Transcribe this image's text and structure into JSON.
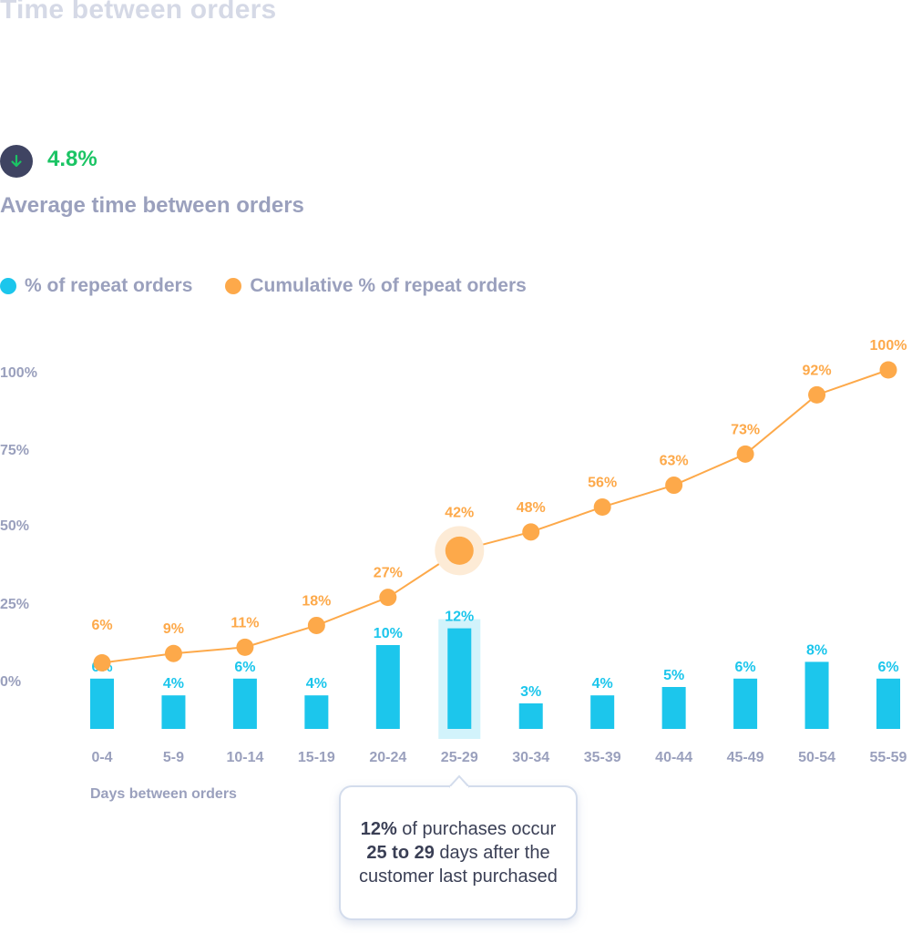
{
  "header": {
    "title": "Time between orders"
  },
  "kpi": {
    "icon": "arrow-down-icon",
    "value": "4.8%",
    "label": "Average time between orders",
    "value_color": "#1bc464",
    "icon_bg": "#3f4462"
  },
  "legend": {
    "items": [
      {
        "label": "% of repeat orders",
        "color": "#1cc6ec"
      },
      {
        "label": "Cumulative % of repeat orders",
        "color": "#fda94a"
      }
    ]
  },
  "axis": {
    "y_ticks": [
      "100%",
      "75%",
      "50%",
      "25%",
      "0%"
    ],
    "x_label": "Days between orders"
  },
  "tooltip": {
    "p1_bold": "12%",
    "p1_text": " of purchases occur ",
    "p2_bold": "25 to 29",
    "p2_text": " days after the customer last purchased"
  },
  "chart_data": {
    "type": "bar+line",
    "title": "Time between orders",
    "xlabel": "Days between orders",
    "ylabel": "",
    "ylim": [
      0,
      100
    ],
    "y_ticks": [
      0,
      25,
      50,
      75,
      100
    ],
    "grid": false,
    "legend_position": "top-left",
    "categories": [
      "0-4",
      "5-9",
      "10-14",
      "15-19",
      "20-24",
      "25-29",
      "30-34",
      "35-39",
      "40-44",
      "45-49",
      "50-54",
      "55-59"
    ],
    "series": [
      {
        "name": "% of repeat orders",
        "type": "bar",
        "color": "#1cc6ec",
        "values": [
          6,
          4,
          6,
          4,
          10,
          12,
          3,
          4,
          5,
          6,
          8,
          6
        ],
        "labels": [
          "6%",
          "4%",
          "6%",
          "4%",
          "10%",
          "12%",
          "3%",
          "4%",
          "5%",
          "6%",
          "8%",
          "6%"
        ]
      },
      {
        "name": "Cumulative % of repeat orders",
        "type": "line",
        "color": "#fda94a",
        "values": [
          6,
          9,
          11,
          18,
          27,
          42,
          48,
          56,
          63,
          73,
          92,
          100
        ],
        "labels": [
          "6%",
          "9%",
          "11%",
          "18%",
          "27%",
          "42%",
          "48%",
          "56%",
          "63%",
          "73%",
          "92%",
          "100%"
        ]
      }
    ],
    "highlighted_category": "25-29",
    "annotation": "12% of purchases occur 25 to 29 days after the customer last purchased"
  }
}
